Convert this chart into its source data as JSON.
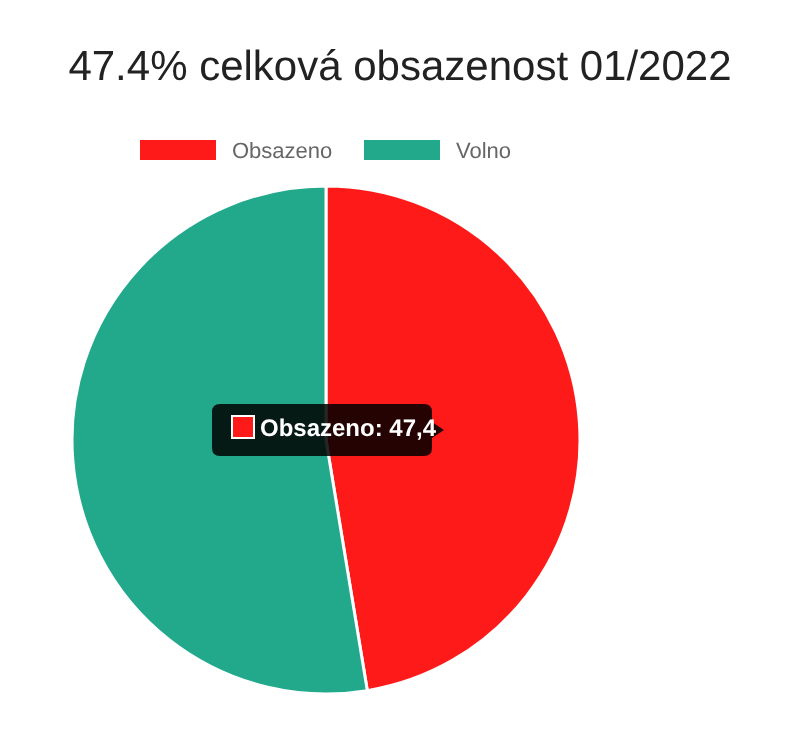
{
  "chart_data": {
    "type": "pie",
    "title": "47.4% celková obsazenost 01/2022",
    "categories": [
      "Obsazeno",
      "Volno"
    ],
    "values": [
      47.4,
      52.6
    ],
    "colors": [
      "#ff1a1a",
      "#22a98b"
    ],
    "legend": "top",
    "annotations": [
      "Obsazeno: 47,4"
    ]
  }
}
